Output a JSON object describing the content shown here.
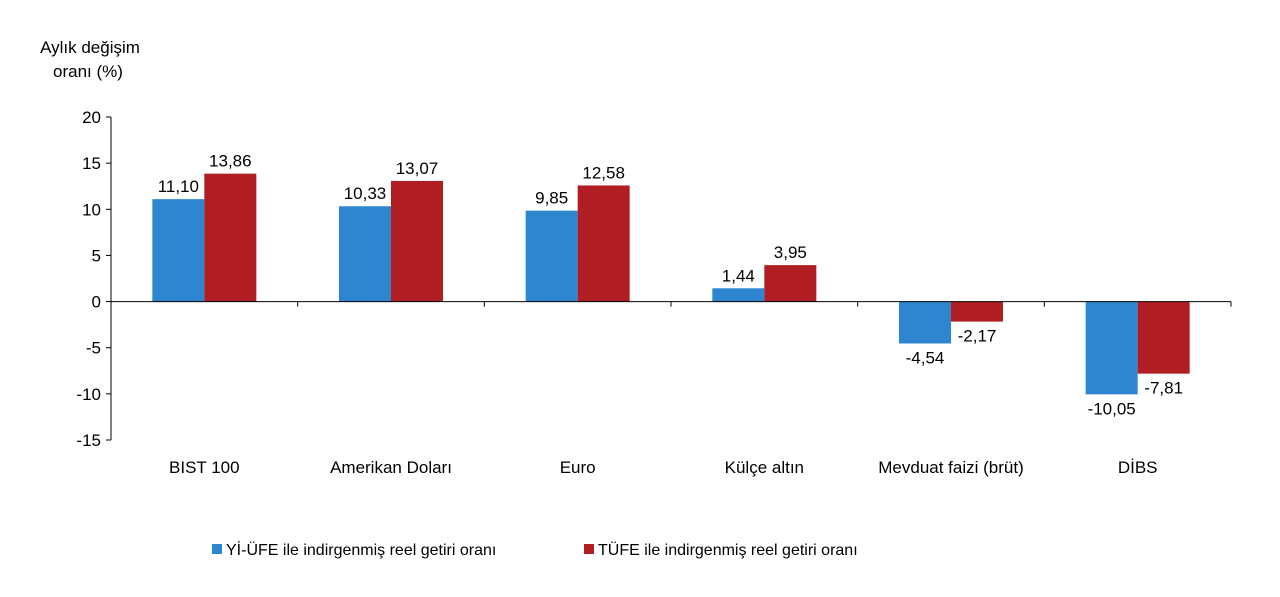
{
  "chart_data": {
    "type": "bar",
    "ylabel_lines": [
      "Aylık değişim",
      "oranı (%)"
    ],
    "ylim": [
      -15,
      20
    ],
    "yticks": [
      "20",
      "15",
      "10",
      "5",
      "0",
      "-5",
      "-10",
      "-15"
    ],
    "ytick_values": [
      20,
      15,
      10,
      5,
      0,
      -5,
      -10,
      -15
    ],
    "categories": [
      "BIST 100",
      "Amerikan Doları",
      "Euro",
      "Külçe altın",
      "Mevduat faizi (brüt)",
      "DİBS"
    ],
    "series": [
      {
        "name": "Yİ-ÜFE ile indirgenmiş reel getiri oranı",
        "color": "#2E86D1",
        "values": [
          11.1,
          10.33,
          9.85,
          1.44,
          -4.54,
          -10.05
        ],
        "labels": [
          "11,10",
          "10,33",
          "9,85",
          "1,44",
          "-4,54",
          "-10,05"
        ]
      },
      {
        "name": "TÜFE ile indirgenmiş reel getiri oranı",
        "color": "#B01E23",
        "values": [
          13.86,
          13.07,
          12.58,
          3.95,
          -2.17,
          -7.81
        ],
        "labels": [
          "13,86",
          "13,07",
          "12,58",
          "3,95",
          "-2,17",
          "-7,81"
        ]
      }
    ],
    "grid": false,
    "legend_position": "bottom"
  }
}
